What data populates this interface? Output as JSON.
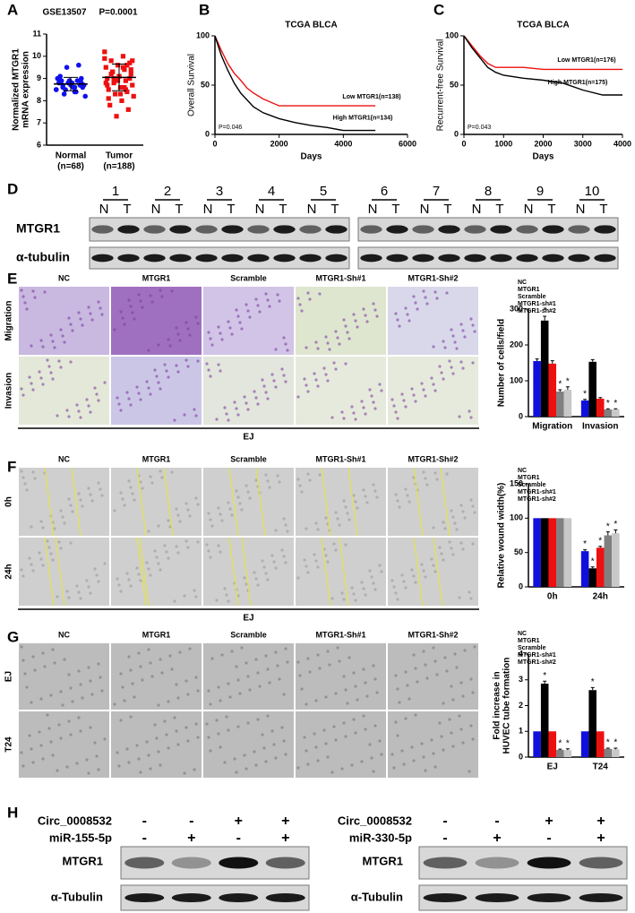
{
  "panel_labels": [
    "A",
    "B",
    "C",
    "D",
    "E",
    "F",
    "G",
    "H"
  ],
  "chart_data": [
    {
      "type": "dot",
      "title": "GSE13507",
      "p_value": "P=0.0001",
      "ylabel": [
        "Normalized MTGR1",
        "mRNA expression"
      ],
      "categories": [
        "Normal",
        "Tumor"
      ],
      "category_sublabels": [
        "(n=68)",
        "(n=188)"
      ],
      "colors": [
        "#1010ee",
        "#ee1010"
      ],
      "values": [
        [
          8.5,
          8.6,
          8.7,
          8.8,
          8.9,
          9.0,
          8.4,
          8.3,
          8.6,
          8.7,
          8.8,
          8.9,
          8.5,
          8.7,
          8.8,
          9.1,
          9.6,
          9.5,
          8.2,
          8.6,
          8.9,
          8.7,
          8.8,
          8.5,
          8.4,
          8.6,
          9.0,
          8.8
        ],
        [
          10.2,
          10.0,
          9.8,
          9.7,
          9.6,
          9.5,
          9.4,
          9.3,
          9.2,
          9.1,
          9.0,
          8.9,
          8.8,
          8.7,
          8.6,
          8.5,
          8.4,
          8.3,
          8.2,
          8.0,
          7.8,
          7.6,
          7.3,
          9.9,
          9.5,
          9.2,
          9.0,
          8.9,
          8.8,
          8.6,
          9.3,
          9.4,
          9.1,
          8.7,
          8.5,
          9.0,
          9.8,
          8.3,
          8.1,
          9.6
        ]
      ],
      "means": [
        8.75,
        9.05
      ],
      "sd": [
        0.3,
        0.6
      ],
      "ylim": [
        6,
        11
      ],
      "yticks": [
        6,
        7,
        8,
        9,
        10,
        11
      ]
    },
    {
      "type": "line",
      "title": "TCGA BLCA",
      "ylabel": "Overall Survival",
      "xlabel": "Days",
      "p_value": "P=0.046",
      "series": [
        {
          "name": "Low MTGR1(n=138)",
          "color": "#ee1010",
          "x": [
            0,
            200,
            400,
            600,
            800,
            1000,
            1200,
            1500,
            2000,
            2500,
            3000,
            4000,
            5000
          ],
          "values": [
            100,
            85,
            72,
            62,
            55,
            47,
            42,
            36,
            29,
            29,
            29,
            29,
            29
          ]
        },
        {
          "name": "High MTGR1(n=134)",
          "color": "#000000",
          "x": [
            0,
            200,
            400,
            600,
            800,
            1000,
            1200,
            1500,
            2000,
            2500,
            3000,
            3500,
            4000,
            5000
          ],
          "values": [
            100,
            80,
            65,
            52,
            42,
            35,
            28,
            22,
            16,
            12,
            9,
            7,
            4,
            4
          ]
        }
      ],
      "xlim": [
        0,
        6000
      ],
      "xticks": [
        0,
        2000,
        4000,
        6000
      ],
      "ylim": [
        0,
        100
      ],
      "yticks": [
        0,
        50,
        100
      ]
    },
    {
      "type": "line",
      "title": "TCGA BLCA",
      "ylabel": "Recurrent-free Survival",
      "xlabel": "Days",
      "p_value": "P=0.043",
      "series": [
        {
          "name": "Low MTGR1(n=176)",
          "color": "#ee1010",
          "x": [
            0,
            200,
            400,
            600,
            800,
            1000,
            1500,
            2000,
            2500,
            3000,
            4000
          ],
          "values": [
            100,
            90,
            80,
            72,
            68,
            68,
            68,
            66,
            66,
            66,
            66
          ]
        },
        {
          "name": "High MTGR1(n=175)",
          "color": "#000000",
          "x": [
            0,
            200,
            400,
            600,
            800,
            1000,
            1500,
            2000,
            2500,
            3000,
            3500,
            4000
          ],
          "values": [
            100,
            88,
            78,
            68,
            63,
            60,
            57,
            55,
            52,
            45,
            40,
            40
          ]
        }
      ],
      "xlim": [
        0,
        4000
      ],
      "xticks": [
        0,
        1000,
        2000,
        3000,
        4000
      ],
      "ylim": [
        0,
        100
      ],
      "yticks": [
        0,
        50,
        100
      ]
    },
    {
      "type": "bar",
      "ylabel": [
        "Number of cells/field"
      ],
      "categories": [
        "Migration",
        "Invasion"
      ],
      "series": [
        {
          "name": "NC",
          "color": "#1010dd",
          "values": [
            155,
            45
          ],
          "errors": [
            6,
            3
          ],
          "stars": [
            null,
            "*"
          ]
        },
        {
          "name": "MTGR1",
          "color": "#000000",
          "values": [
            268,
            153
          ],
          "errors": [
            12,
            6
          ],
          "stars": [
            "*",
            null
          ]
        },
        {
          "name": "Scramble",
          "color": "#ee1010",
          "values": [
            148,
            50
          ],
          "errors": [
            8,
            3
          ],
          "stars": [
            null,
            null
          ]
        },
        {
          "name": "MTGR1-sh#1",
          "color": "#808080",
          "values": [
            70,
            20
          ],
          "errors": [
            5,
            2
          ],
          "stars": [
            "*",
            "*"
          ]
        },
        {
          "name": "MTGR1-sh#2",
          "color": "#c8c8c8",
          "values": [
            75,
            20
          ],
          "errors": [
            8,
            2
          ],
          "stars": [
            "*",
            "*"
          ]
        }
      ],
      "ylim": [
        0,
        300
      ],
      "yticks": [
        0,
        100,
        200,
        300
      ],
      "legend": "top-left"
    },
    {
      "type": "bar",
      "ylabel": [
        "Relative wound width(%)"
      ],
      "categories": [
        "0h",
        "24h"
      ],
      "series": [
        {
          "name": "NC",
          "color": "#1010dd",
          "values": [
            100,
            52
          ],
          "errors": [
            0,
            2
          ],
          "stars": [
            null,
            "*"
          ]
        },
        {
          "name": "MTGR1",
          "color": "#000000",
          "values": [
            100,
            27
          ],
          "errors": [
            0,
            2
          ],
          "stars": [
            null,
            "*"
          ]
        },
        {
          "name": "Scramble",
          "color": "#ee1010",
          "values": [
            100,
            57
          ],
          "errors": [
            0,
            2
          ],
          "stars": [
            null,
            "*"
          ]
        },
        {
          "name": "MTGR1-sh#1",
          "color": "#808080",
          "values": [
            100,
            75
          ],
          "errors": [
            0,
            5
          ],
          "stars": [
            null,
            "*"
          ]
        },
        {
          "name": "MTGR1-sh#2",
          "color": "#c8c8c8",
          "values": [
            100,
            78
          ],
          "errors": [
            0,
            5
          ],
          "stars": [
            null,
            "*"
          ]
        }
      ],
      "ylim": [
        0,
        150
      ],
      "yticks": [
        0,
        50,
        100,
        150
      ],
      "legend": "top-left"
    },
    {
      "type": "bar",
      "ylabel": [
        "Fold increase in",
        "HUVEC tube formation"
      ],
      "categories": [
        "EJ",
        "T24"
      ],
      "series": [
        {
          "name": "NC",
          "color": "#1010dd",
          "values": [
            1,
            1
          ],
          "errors": [
            0,
            0
          ],
          "stars": [
            null,
            null
          ]
        },
        {
          "name": "MTGR1",
          "color": "#000000",
          "values": [
            2.85,
            2.6
          ],
          "errors": [
            0.1,
            0.1
          ],
          "stars": [
            "*",
            "*"
          ]
        },
        {
          "name": "Scramble",
          "color": "#ee1010",
          "values": [
            1,
            1
          ],
          "errors": [
            0,
            0
          ],
          "stars": [
            null,
            null
          ]
        },
        {
          "name": "MTGR1-sh#1",
          "color": "#808080",
          "values": [
            0.28,
            0.32
          ],
          "errors": [
            0.03,
            0.03
          ],
          "stars": [
            "*",
            "*"
          ]
        },
        {
          "name": "MTGR1-sh#2",
          "color": "#c8c8c8",
          "values": [
            0.27,
            0.3
          ],
          "errors": [
            0.05,
            0.05
          ],
          "stars": [
            "*",
            "*"
          ]
        }
      ],
      "ylim": [
        0,
        4
      ],
      "yticks": [
        0,
        1,
        2,
        3,
        4
      ],
      "legend": "top-left"
    }
  ],
  "panel_D": {
    "groups": [
      "1",
      "2",
      "3",
      "4",
      "5",
      "6",
      "7",
      "8",
      "9",
      "10"
    ],
    "lanes": [
      "N",
      "T"
    ],
    "rows": [
      "MTGR1",
      "α-tubulin"
    ]
  },
  "panel_E": {
    "columns": [
      "NC",
      "MTGR1",
      "Scramble",
      "MTGR1-Sh#1",
      "MTGR1-Sh#2"
    ],
    "rows": [
      "Migration",
      "Invasion"
    ],
    "cell_line": "EJ"
  },
  "panel_F": {
    "columns": [
      "NC",
      "MTGR1",
      "Scramble",
      "MTGR1-Sh#1",
      "MTGR1-Sh#2"
    ],
    "rows": [
      "0h",
      "24h"
    ],
    "cell_line": "EJ"
  },
  "panel_G": {
    "columns": [
      "NC",
      "MTGR1",
      "Scramble",
      "MTGR1-Sh#1",
      "MTGR1-Sh#2"
    ],
    "rows": [
      "EJ",
      "T24"
    ]
  },
  "panel_H": [
    {
      "conditions": [
        {
          "label": "Circ_0008532",
          "signs": [
            "-",
            "-",
            "+",
            "+"
          ]
        },
        {
          "label": "miR-155-5p",
          "signs": [
            "-",
            "+",
            "-",
            "+"
          ]
        }
      ],
      "rows": [
        "MTGR1",
        "α-Tubulin"
      ]
    },
    {
      "conditions": [
        {
          "label": "Circ_0008532",
          "signs": [
            "-",
            "-",
            "+",
            "+"
          ]
        },
        {
          "label": "miR-330-5p",
          "signs": [
            "-",
            "+",
            "-",
            "+"
          ]
        }
      ],
      "rows": [
        "MTGR1",
        "α-Tubulin"
      ]
    }
  ]
}
